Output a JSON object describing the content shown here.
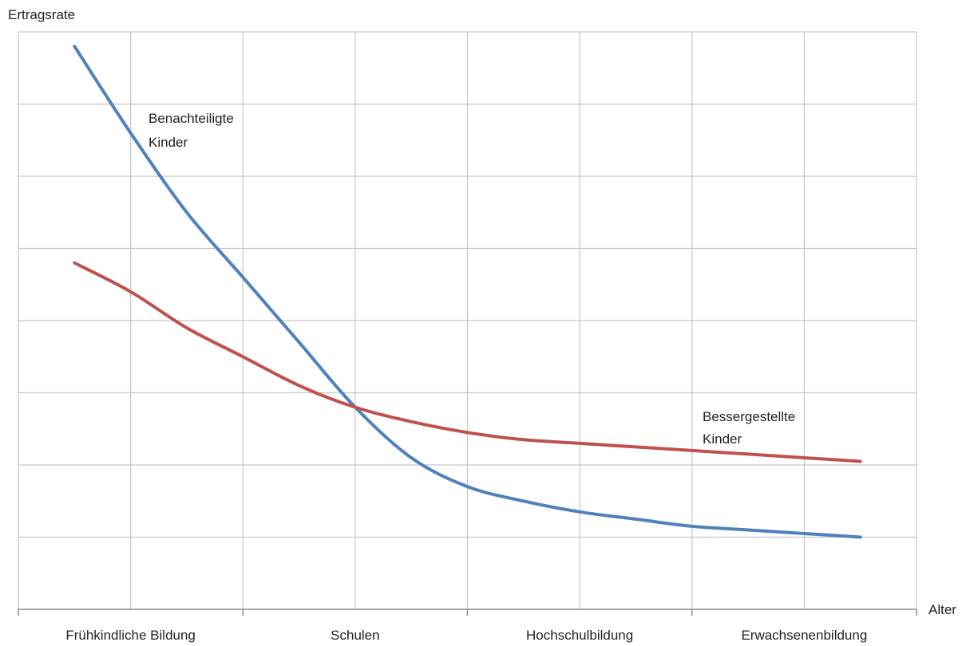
{
  "chart_data": {
    "type": "line",
    "ylabel": "Ertragsrate",
    "xlabel": "Alter",
    "categories": [
      "Frühkindliche Bildung",
      "Schulen",
      "Hochschulbildung",
      "Erwachsenenbildung"
    ],
    "xlim": [
      0,
      8
    ],
    "ylim": [
      0,
      8
    ],
    "grid": true,
    "series": [
      {
        "name": "Benachteiligte Kinder",
        "color": "#4f81bd",
        "x": [
          0.5,
          1,
          1.5,
          2,
          2.5,
          3,
          3.5,
          4,
          4.5,
          5,
          5.5,
          6,
          6.5,
          7,
          7.5
        ],
        "y": [
          7.8,
          6.6,
          5.5,
          4.6,
          3.7,
          2.8,
          2.1,
          1.7,
          1.5,
          1.35,
          1.25,
          1.15,
          1.1,
          1.05,
          1.0
        ]
      },
      {
        "name": "Bessergestellte Kinder",
        "color": "#c0504d",
        "x": [
          0.5,
          1,
          1.5,
          2,
          2.5,
          3,
          3.5,
          4,
          4.5,
          5,
          5.5,
          6,
          6.5,
          7,
          7.5
        ],
        "y": [
          4.8,
          4.4,
          3.9,
          3.5,
          3.1,
          2.8,
          2.6,
          2.45,
          2.35,
          2.3,
          2.25,
          2.2,
          2.15,
          2.1,
          2.05
        ]
      }
    ],
    "annotations": [
      {
        "series": "Benachteiligte Kinder",
        "lines": [
          "Benachteiligte",
          "Kinder"
        ]
      },
      {
        "series": "Bessergestellte Kinder",
        "lines": [
          "Bessergestellte",
          "Kinder"
        ]
      }
    ]
  }
}
